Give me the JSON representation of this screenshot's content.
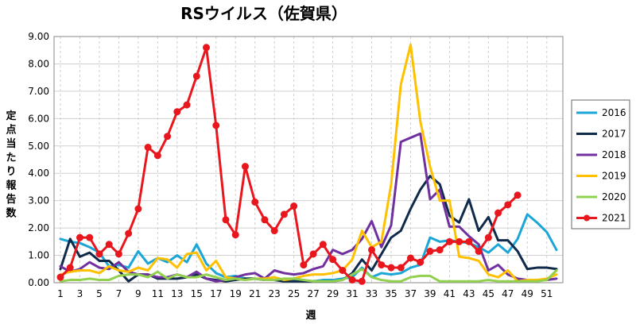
{
  "chart_data": {
    "type": "line",
    "title": "RSウイルス（佐賀県）",
    "ylabel": "定点当たり報告数",
    "xlabel": "週",
    "ylim": [
      0,
      9
    ],
    "xlim": [
      1,
      52
    ],
    "y_ticks": [
      "0.00",
      "1.00",
      "2.00",
      "3.00",
      "4.00",
      "5.00",
      "6.00",
      "7.00",
      "8.00",
      "9.00"
    ],
    "x_ticks": [
      "1",
      "3",
      "5",
      "7",
      "9",
      "11",
      "13",
      "15",
      "17",
      "19",
      "21",
      "23",
      "25",
      "27",
      "29",
      "31",
      "33",
      "35",
      "37",
      "39",
      "41",
      "43",
      "45",
      "47",
      "49",
      "51"
    ],
    "grid": true,
    "legend_position": "right",
    "series": [
      {
        "name": "2016",
        "color": "#1aa6d6",
        "marker": false,
        "values": [
          1.6,
          1.5,
          1.45,
          1.3,
          1.1,
          0.6,
          0.65,
          0.55,
          1.15,
          0.7,
          0.9,
          0.75,
          1.0,
          0.75,
          1.4,
          0.7,
          0.35,
          0.2,
          0.25,
          0.15,
          0.15,
          0.1,
          0.1,
          0.05,
          0.1,
          0.1,
          0.05,
          0.1,
          0.1,
          0.15,
          0.2,
          0.55,
          0.2,
          0.35,
          0.3,
          0.35,
          0.55,
          0.65,
          1.65,
          1.5,
          1.55,
          1.5,
          1.45,
          1.3,
          1.1,
          1.4,
          1.1,
          1.6,
          2.5,
          2.2,
          1.85,
          1.2
        ]
      },
      {
        "name": "2017",
        "color": "#0f2a4a",
        "marker": false,
        "values": [
          0.5,
          1.6,
          0.95,
          1.1,
          0.8,
          0.8,
          0.45,
          0.05,
          0.3,
          0.3,
          0.15,
          0.15,
          0.15,
          0.2,
          0.3,
          0.15,
          0.1,
          0.05,
          0.1,
          0.15,
          0.15,
          0.1,
          0.1,
          0.05,
          0.05,
          0.05,
          0.05,
          0.05,
          0.05,
          0.1,
          0.35,
          0.85,
          0.45,
          1.05,
          1.65,
          1.9,
          2.7,
          3.4,
          3.9,
          3.6,
          2.45,
          2.2,
          3.05,
          1.9,
          2.4,
          1.55,
          1.55,
          1.15,
          0.5,
          0.55,
          0.55,
          0.5
        ]
      },
      {
        "name": "2018",
        "color": "#7030a0",
        "marker": false,
        "values": [
          0.6,
          0.4,
          0.5,
          0.75,
          0.55,
          0.5,
          0.75,
          0.4,
          0.3,
          0.3,
          0.2,
          0.2,
          0.3,
          0.2,
          0.4,
          0.15,
          0.05,
          0.1,
          0.2,
          0.3,
          0.35,
          0.15,
          0.45,
          0.35,
          0.3,
          0.35,
          0.5,
          0.6,
          1.2,
          1.05,
          1.2,
          1.6,
          2.25,
          1.3,
          2.1,
          5.15,
          5.3,
          5.45,
          3.05,
          3.4,
          2.05,
          2.05,
          1.7,
          1.4,
          0.45,
          0.65,
          0.3,
          0.15,
          0.1,
          0.1,
          0.1,
          0.15
        ]
      },
      {
        "name": "2019",
        "color": "#ffc000",
        "marker": false,
        "values": [
          0.3,
          0.4,
          0.45,
          0.45,
          0.35,
          0.6,
          0.45,
          0.4,
          0.55,
          0.45,
          0.9,
          0.85,
          0.55,
          1.05,
          1.1,
          0.45,
          0.8,
          0.2,
          0.15,
          0.1,
          0.15,
          0.15,
          0.2,
          0.1,
          0.15,
          0.25,
          0.3,
          0.3,
          0.35,
          0.45,
          0.85,
          1.9,
          1.3,
          1.5,
          3.6,
          7.25,
          8.7,
          5.9,
          4.25,
          3.0,
          3.0,
          0.95,
          0.9,
          0.8,
          0.3,
          0.2,
          0.45,
          0.05,
          0.1,
          0.1,
          0.15,
          0.3
        ]
      },
      {
        "name": "2020",
        "color": "#92d050",
        "marker": false,
        "values": [
          0.05,
          0.1,
          0.1,
          0.15,
          0.1,
          0.1,
          0.25,
          0.3,
          0.3,
          0.2,
          0.4,
          0.15,
          0.3,
          0.2,
          0.2,
          0.3,
          0.2,
          0.1,
          0.15,
          0.1,
          0.15,
          0.1,
          0.1,
          0.15,
          0.15,
          0.1,
          0.05,
          0.05,
          0.05,
          0.1,
          0.3,
          0.5,
          0.2,
          0.1,
          0.05,
          0.05,
          0.2,
          0.25,
          0.25,
          0.05,
          0.05,
          0.05,
          0.05,
          0.05,
          0.1,
          0.05,
          0.05,
          0.05,
          0.05,
          0.05,
          0.1,
          0.45
        ]
      },
      {
        "name": "2021",
        "color": "#e8171d",
        "marker": true,
        "values": [
          0.2,
          0.55,
          1.65,
          1.65,
          1.05,
          1.4,
          1.05,
          1.8,
          2.7,
          4.95,
          4.65,
          5.35,
          6.25,
          6.5,
          7.55,
          8.6,
          5.75,
          2.3,
          1.75,
          4.25,
          2.95,
          2.3,
          1.9,
          2.5,
          2.8,
          0.65,
          1.05,
          1.4,
          0.85,
          0.45,
          0.1,
          0.05,
          1.2,
          0.65,
          0.55,
          0.55,
          0.9,
          0.75,
          1.15,
          1.2,
          1.5,
          1.5,
          1.5,
          1.15,
          1.65,
          2.55,
          2.85,
          3.2
        ]
      }
    ]
  }
}
